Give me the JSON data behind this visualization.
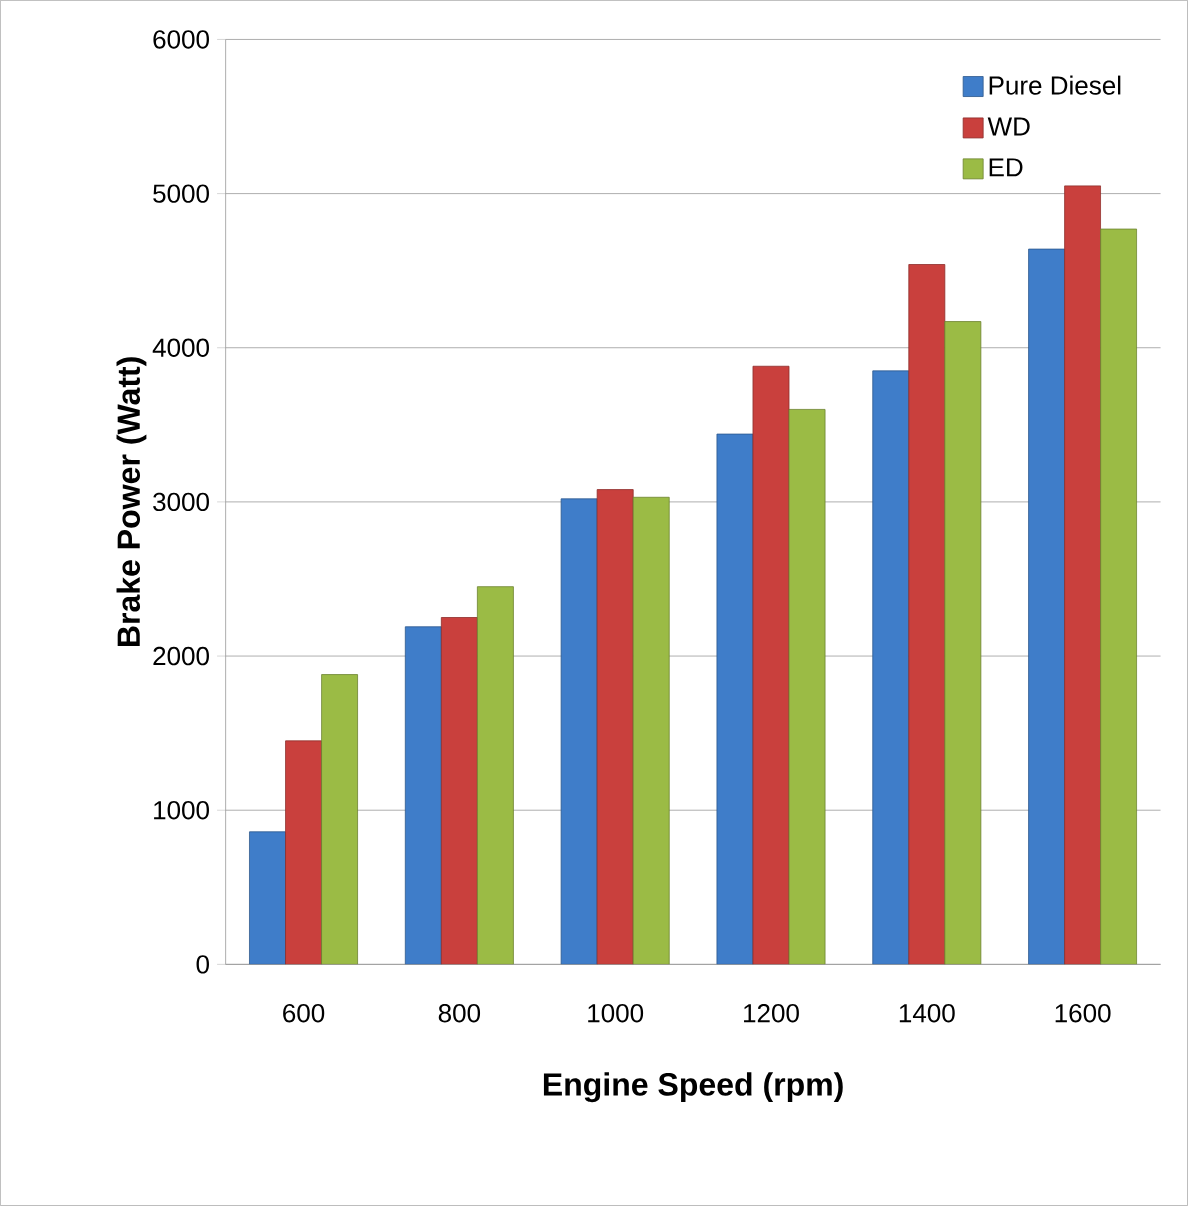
{
  "chart_data": {
    "type": "bar",
    "xlabel": "Engine Speed (rpm)",
    "ylabel": "Brake Power (Watt)",
    "categories": [
      "600",
      "800",
      "1000",
      "1200",
      "1400",
      "1600"
    ],
    "series": [
      {
        "name": "Pure Diesel",
        "color": "#3f7dc9",
        "values": [
          860,
          2190,
          3020,
          3440,
          3850,
          4640
        ]
      },
      {
        "name": "WD",
        "color": "#c9403d",
        "values": [
          1450,
          2250,
          3080,
          3880,
          4540,
          5050
        ]
      },
      {
        "name": "ED",
        "color": "#9bbb45",
        "values": [
          1880,
          2450,
          3030,
          3600,
          4170,
          4770
        ]
      }
    ],
    "ylim": [
      0,
      6000
    ],
    "yticks": [
      0,
      1000,
      2000,
      3000,
      4000,
      5000,
      6000
    ],
    "grid": "y",
    "legend": "top right"
  }
}
